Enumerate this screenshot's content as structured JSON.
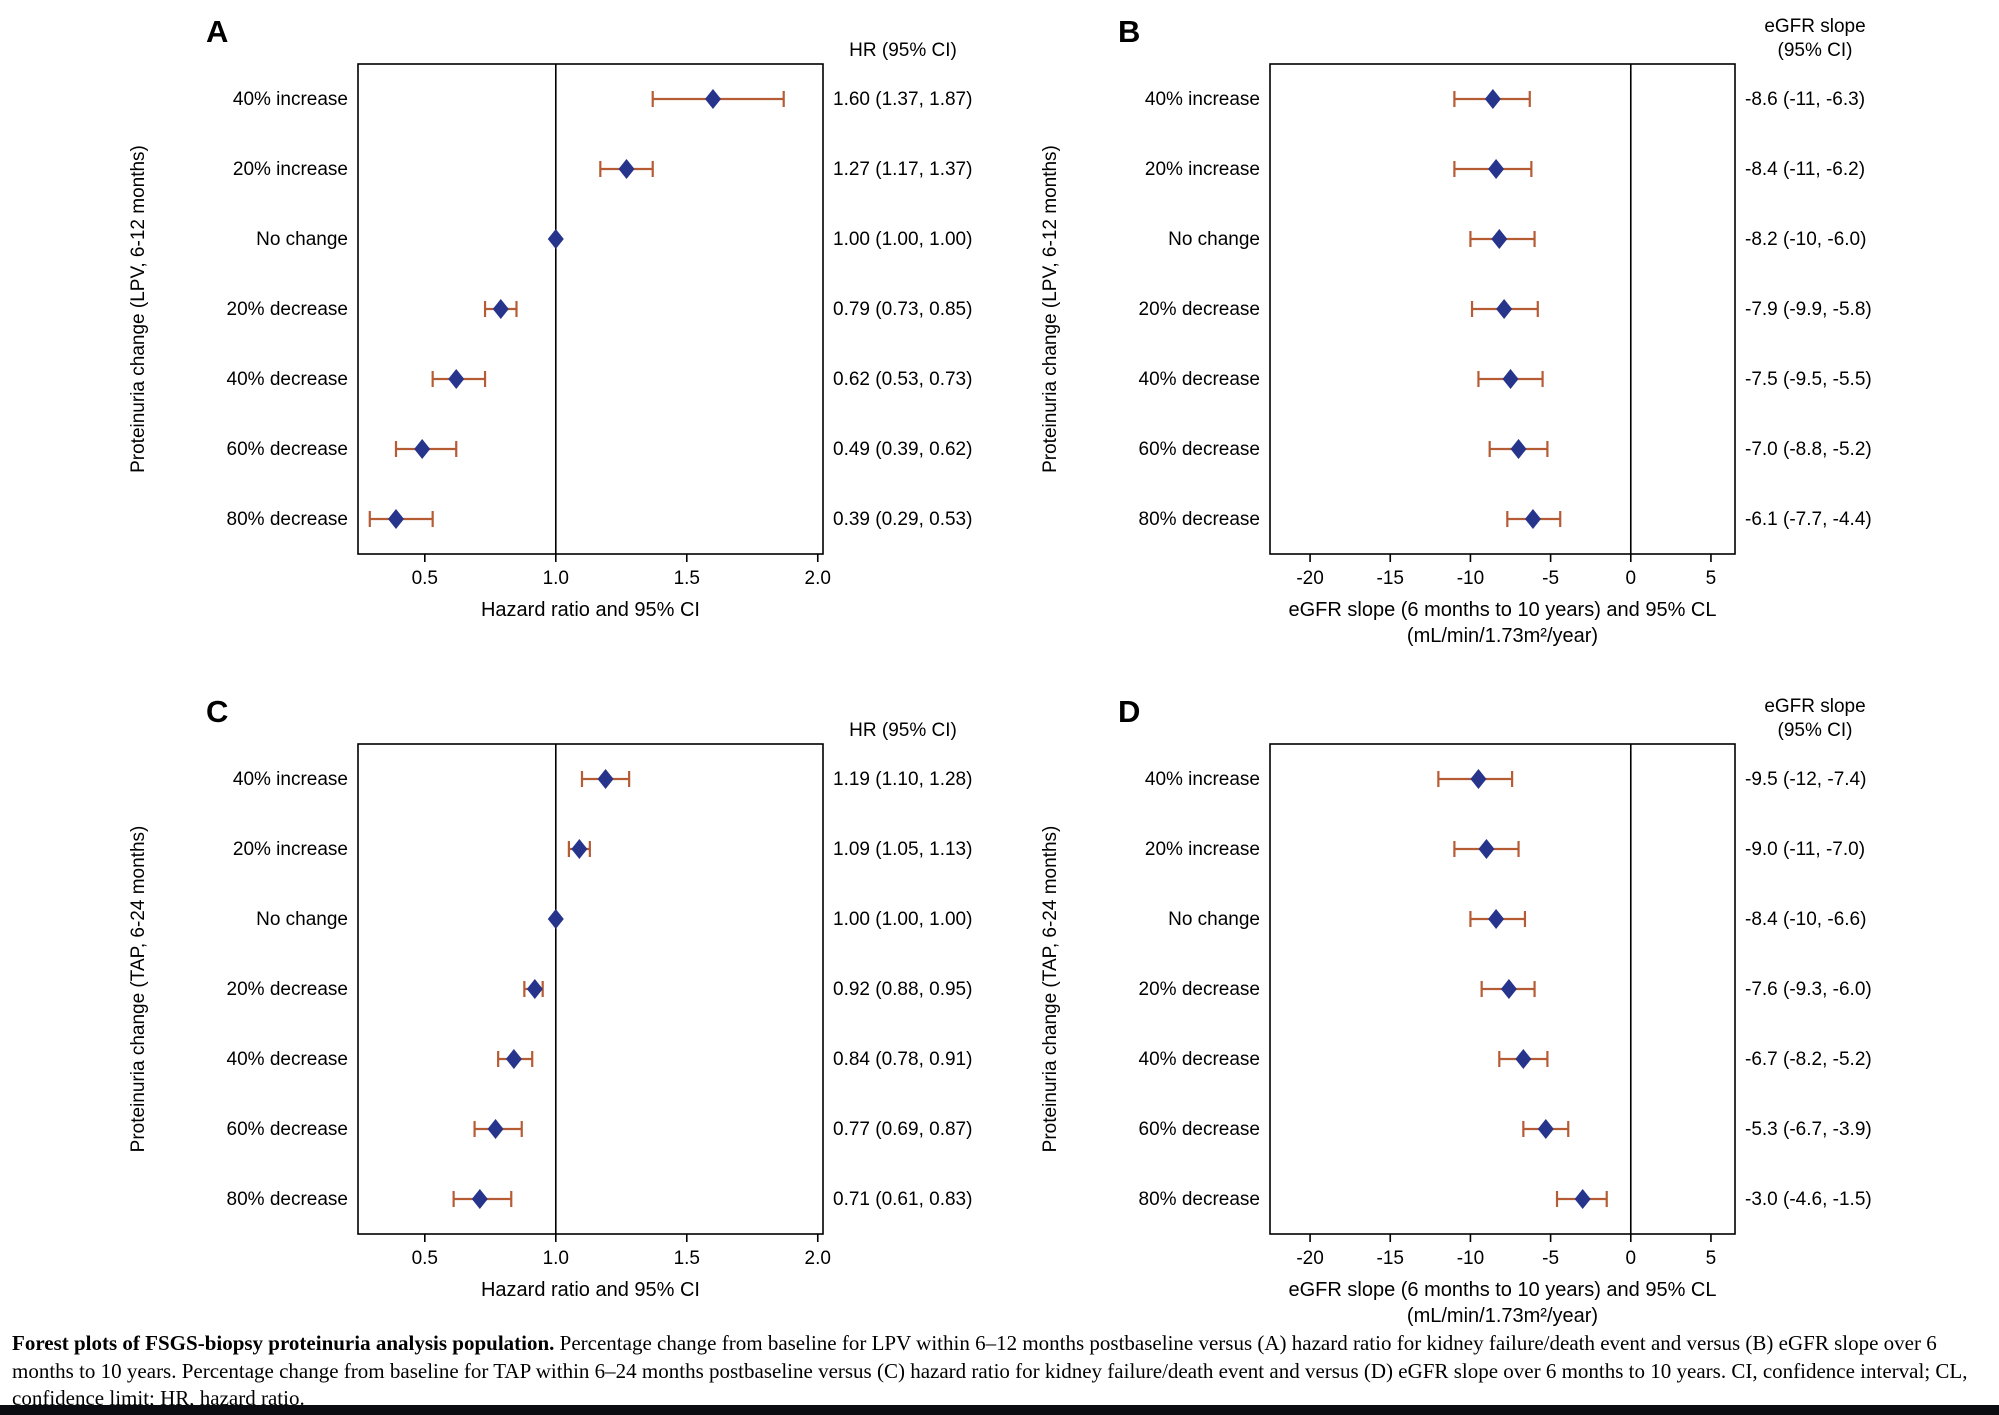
{
  "caption": {
    "lead": "Forest plots of FSGS-biopsy proteinuria analysis population.",
    "body": " Percentage change from baseline for LPV within 6–12 months postbaseline versus (A) hazard ratio for kidney failure/death event and versus (B) eGFR slope over 6 months to 10 years. Percentage change from baseline for TAP within 6–24 months postbaseline versus (C) hazard ratio for kidney failure/death event and versus (D) eGFR slope over 6 months to 10 years. CI, confidence interval; CL, confidence limit; HR, hazard ratio."
  },
  "colors": {
    "diamond": "#27348b",
    "ci_bar": "#b65c35",
    "axis": "#000000",
    "background": "#ffffff",
    "bottom_bar": "#0b0b12"
  },
  "chart_data": [
    {
      "type": "forest",
      "panel": "A",
      "value_header": [
        "HR (95% CI)"
      ],
      "ylabel": "Proteinuria change (LPV, 6-12 months)",
      "xlabel": [
        "Hazard ratio and 95% CI"
      ],
      "xlim": [
        0.245,
        2.02
      ],
      "ref_line": 1.0,
      "ticks": [
        0.5,
        1.0,
        1.5,
        2.0
      ],
      "tick_labels": [
        "0.5",
        "1.0",
        "1.5",
        "2.0"
      ],
      "rows": [
        {
          "label": "40% increase",
          "est": 1.6,
          "lo": 1.37,
          "hi": 1.87,
          "value": "1.60 (1.37, 1.87)"
        },
        {
          "label": "20% increase",
          "est": 1.27,
          "lo": 1.17,
          "hi": 1.37,
          "value": "1.27 (1.17, 1.37)"
        },
        {
          "label": "No change",
          "est": 1.0,
          "lo": 1.0,
          "hi": 1.0,
          "value": "1.00 (1.00, 1.00)"
        },
        {
          "label": "20% decrease",
          "est": 0.79,
          "lo": 0.73,
          "hi": 0.85,
          "value": "0.79 (0.73, 0.85)"
        },
        {
          "label": "40% decrease",
          "est": 0.62,
          "lo": 0.53,
          "hi": 0.73,
          "value": "0.62 (0.53, 0.73)"
        },
        {
          "label": "60% decrease",
          "est": 0.49,
          "lo": 0.39,
          "hi": 0.62,
          "value": "0.49 (0.39, 0.62)"
        },
        {
          "label": "80% decrease",
          "est": 0.39,
          "lo": 0.29,
          "hi": 0.53,
          "value": "0.39 (0.29, 0.53)"
        }
      ]
    },
    {
      "type": "forest",
      "panel": "B",
      "value_header": [
        "eGFR slope",
        "(95% CI)"
      ],
      "ylabel": "Proteinuria change (LPV, 6-12 months)",
      "xlabel": [
        "eGFR slope (6 months to 10 years) and 95% CL",
        "(mL/min/1.73m²/year)"
      ],
      "xlim": [
        -22.5,
        6.5
      ],
      "ref_line": 0,
      "ticks": [
        -20,
        -15,
        -10,
        -5,
        0,
        5
      ],
      "tick_labels": [
        "-20",
        "-15",
        "-10",
        "-5",
        "0",
        "5"
      ],
      "rows": [
        {
          "label": "40% increase",
          "est": -8.6,
          "lo": -11.0,
          "hi": -6.3,
          "value": "-8.6 (-11, -6.3)"
        },
        {
          "label": "20% increase",
          "est": -8.4,
          "lo": -11.0,
          "hi": -6.2,
          "value": "-8.4 (-11, -6.2)"
        },
        {
          "label": "No change",
          "est": -8.2,
          "lo": -10.0,
          "hi": -6.0,
          "value": "-8.2 (-10, -6.0)"
        },
        {
          "label": "20% decrease",
          "est": -7.9,
          "lo": -9.9,
          "hi": -5.8,
          "value": "-7.9 (-9.9, -5.8)"
        },
        {
          "label": "40% decrease",
          "est": -7.5,
          "lo": -9.5,
          "hi": -5.5,
          "value": "-7.5 (-9.5, -5.5)"
        },
        {
          "label": "60% decrease",
          "est": -7.0,
          "lo": -8.8,
          "hi": -5.2,
          "value": "-7.0 (-8.8, -5.2)"
        },
        {
          "label": "80% decrease",
          "est": -6.1,
          "lo": -7.7,
          "hi": -4.4,
          "value": "-6.1 (-7.7, -4.4)"
        }
      ]
    },
    {
      "type": "forest",
      "panel": "C",
      "value_header": [
        "HR (95% CI)"
      ],
      "ylabel": "Proteinuria change (TAP, 6-24 months)",
      "xlabel": [
        "Hazard ratio and 95% CI"
      ],
      "xlim": [
        0.245,
        2.02
      ],
      "ref_line": 1.0,
      "ticks": [
        0.5,
        1.0,
        1.5,
        2.0
      ],
      "tick_labels": [
        "0.5",
        "1.0",
        "1.5",
        "2.0"
      ],
      "rows": [
        {
          "label": "40% increase",
          "est": 1.19,
          "lo": 1.1,
          "hi": 1.28,
          "value": "1.19 (1.10, 1.28)"
        },
        {
          "label": "20% increase",
          "est": 1.09,
          "lo": 1.05,
          "hi": 1.13,
          "value": "1.09 (1.05, 1.13)"
        },
        {
          "label": "No change",
          "est": 1.0,
          "lo": 1.0,
          "hi": 1.0,
          "value": "1.00 (1.00, 1.00)"
        },
        {
          "label": "20% decrease",
          "est": 0.92,
          "lo": 0.88,
          "hi": 0.95,
          "value": "0.92 (0.88, 0.95)"
        },
        {
          "label": "40% decrease",
          "est": 0.84,
          "lo": 0.78,
          "hi": 0.91,
          "value": "0.84 (0.78, 0.91)"
        },
        {
          "label": "60% decrease",
          "est": 0.77,
          "lo": 0.69,
          "hi": 0.87,
          "value": "0.77 (0.69, 0.87)"
        },
        {
          "label": "80% decrease",
          "est": 0.71,
          "lo": 0.61,
          "hi": 0.83,
          "value": "0.71 (0.61, 0.83)"
        }
      ]
    },
    {
      "type": "forest",
      "panel": "D",
      "value_header": [
        "eGFR slope",
        "(95% CI)"
      ],
      "ylabel": "Proteinuria change (TAP, 6-24 months)",
      "xlabel": [
        "eGFR slope (6 months to 10 years) and 95% CL",
        "(mL/min/1.73m²/year)"
      ],
      "xlim": [
        -22.5,
        6.5
      ],
      "ref_line": 0,
      "ticks": [
        -20,
        -15,
        -10,
        -5,
        0,
        5
      ],
      "tick_labels": [
        "-20",
        "-15",
        "-10",
        "-5",
        "0",
        "5"
      ],
      "rows": [
        {
          "label": "40% increase",
          "est": -9.5,
          "lo": -12.0,
          "hi": -7.4,
          "value": "-9.5 (-12, -7.4)"
        },
        {
          "label": "20% increase",
          "est": -9.0,
          "lo": -11.0,
          "hi": -7.0,
          "value": "-9.0 (-11, -7.0)"
        },
        {
          "label": "No change",
          "est": -8.4,
          "lo": -10.0,
          "hi": -6.6,
          "value": "-8.4 (-10, -6.6)"
        },
        {
          "label": "20% decrease",
          "est": -7.6,
          "lo": -9.3,
          "hi": -6.0,
          "value": "-7.6 (-9.3, -6.0)"
        },
        {
          "label": "40% decrease",
          "est": -6.7,
          "lo": -8.2,
          "hi": -5.2,
          "value": "-6.7 (-8.2, -5.2)"
        },
        {
          "label": "60% decrease",
          "est": -5.3,
          "lo": -6.7,
          "hi": -3.9,
          "value": "-5.3 (-6.7, -3.9)"
        },
        {
          "label": "80% decrease",
          "est": -3.0,
          "lo": -4.6,
          "hi": -1.5,
          "value": "-3.0 (-4.6, -1.5)"
        }
      ]
    }
  ]
}
